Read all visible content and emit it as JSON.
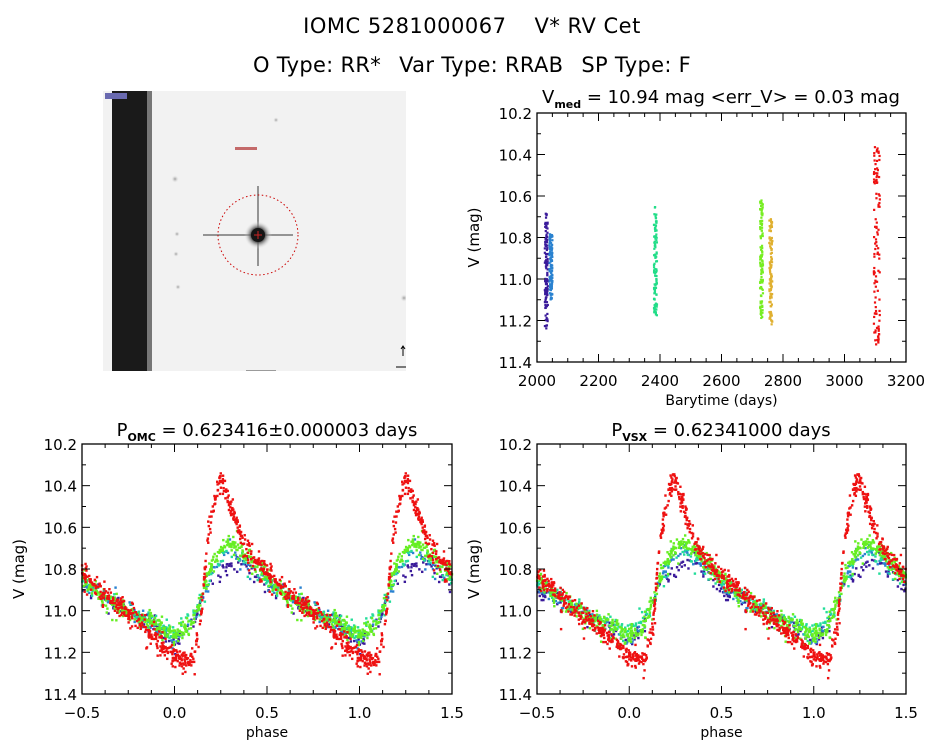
{
  "header": {
    "object_id": "IOMC 5281000067",
    "star_name": "V* RV Cet",
    "o_type": "O Type: RR*",
    "var_type": "Var Type: RRAB",
    "sp_type": "SP Type: F"
  },
  "finder": {
    "description": "grayscale sky image with target star circled in red",
    "circle_color": "#cc0000"
  },
  "chart_data": [
    {
      "id": "lightcurve",
      "type": "scatter",
      "title_main": "V",
      "title_sub": "med",
      "title_rest": " = 10.94 mag <err_V> = 0.03 mag",
      "xlabel": "Barytime (days)",
      "ylabel": "V (mag)",
      "xlim": [
        2000,
        3200
      ],
      "ylim": [
        11.4,
        10.2
      ],
      "y_inverted": true,
      "xticks": [
        2000,
        2200,
        2400,
        2600,
        2800,
        3000,
        3200
      ],
      "xtick_labels": [
        "2000",
        "2200",
        "2400",
        "2600",
        "2800",
        "3000",
        "3200"
      ],
      "yticks": [
        10.2,
        10.4,
        10.6,
        10.8,
        11.0,
        11.2,
        11.4
      ],
      "ytick_labels": [
        "10.2",
        "10.4",
        "10.6",
        "10.8",
        "11.0",
        "11.2",
        "11.4"
      ],
      "series": [
        {
          "name": "season-1a",
          "color": "#3a1a9a",
          "x": 2030,
          "ymin": 10.68,
          "ymax": 11.24
        },
        {
          "name": "season-1b",
          "color": "#2a82d0",
          "x": 2045,
          "ymin": 10.78,
          "ymax": 11.1
        },
        {
          "name": "season-2",
          "color": "#22dd88",
          "x": 2385,
          "ymin": 10.65,
          "ymax": 11.18
        },
        {
          "name": "season-3a",
          "color": "#77ee22",
          "x": 2730,
          "ymin": 10.62,
          "ymax": 11.2
        },
        {
          "name": "season-3b",
          "color": "#e0b030",
          "x": 2760,
          "ymin": 10.71,
          "ymax": 11.22
        },
        {
          "name": "season-4",
          "color": "#ee1111",
          "x": 3105,
          "ymin": 10.35,
          "ymax": 11.33
        }
      ]
    },
    {
      "id": "phase-omc",
      "type": "scatter",
      "title_main": "P",
      "title_sub": "OMC",
      "title_rest": " = 0.623416±0.000003 days",
      "xlabel": "phase",
      "ylabel": "V (mag)",
      "xlim": [
        -0.5,
        1.5
      ],
      "ylim": [
        11.4,
        10.2
      ],
      "y_inverted": true,
      "xticks": [
        -0.5,
        0.0,
        0.5,
        1.0,
        1.5
      ],
      "xtick_labels": [
        "−0.5",
        "0.0",
        "0.5",
        "1.0",
        "1.5"
      ],
      "yticks": [
        10.2,
        10.4,
        10.6,
        10.8,
        11.0,
        11.2,
        11.4
      ],
      "ytick_labels": [
        "10.2",
        "10.4",
        "10.6",
        "10.8",
        "11.0",
        "11.2",
        "11.4"
      ],
      "phase_shift": 0.0,
      "curves": [
        {
          "name": "red-epoch",
          "color": "#ee1111",
          "phase": [
            0.0,
            0.1,
            0.14,
            0.18,
            0.22,
            0.25,
            0.3,
            0.35,
            0.4,
            0.5,
            0.6,
            0.7,
            0.8,
            0.9,
            1.0
          ],
          "mag": [
            11.22,
            11.24,
            11.05,
            10.65,
            10.45,
            10.36,
            10.48,
            10.62,
            10.72,
            10.82,
            10.9,
            10.98,
            11.05,
            11.13,
            11.22
          ]
        },
        {
          "name": "green-epoch",
          "color": "#66ee22",
          "phase": [
            0.0,
            0.08,
            0.14,
            0.2,
            0.25,
            0.3,
            0.35,
            0.4,
            0.5,
            0.6,
            0.7,
            0.8,
            0.9,
            1.0
          ],
          "mag": [
            11.12,
            11.08,
            10.95,
            10.78,
            10.7,
            10.67,
            10.7,
            10.74,
            10.83,
            10.92,
            10.98,
            11.03,
            11.06,
            11.12
          ]
        },
        {
          "name": "blue-epoch",
          "color": "#2a82d0",
          "phase": [
            0.0,
            0.1,
            0.2,
            0.3,
            0.4,
            0.5,
            0.7,
            0.9,
            1.0
          ],
          "mag": [
            11.15,
            11.05,
            10.8,
            10.7,
            10.78,
            10.87,
            10.98,
            11.08,
            11.15
          ]
        },
        {
          "name": "teal-epoch",
          "color": "#22dd99",
          "phase": [
            0.0,
            0.12,
            0.2,
            0.3,
            0.45,
            0.6,
            0.8,
            1.0
          ],
          "mag": [
            11.1,
            11.0,
            10.82,
            10.7,
            10.82,
            10.92,
            11.02,
            11.1
          ]
        },
        {
          "name": "purple-epoch",
          "color": "#3a1a9a",
          "phase": [
            0.0,
            0.1,
            0.2,
            0.35,
            0.5,
            0.7,
            0.9,
            1.0
          ],
          "mag": [
            11.16,
            11.05,
            10.85,
            10.74,
            10.9,
            10.97,
            11.07,
            11.16
          ]
        }
      ]
    },
    {
      "id": "phase-vsx",
      "type": "scatter",
      "title_main": "P",
      "title_sub": "VSX",
      "title_rest": " = 0.62341000 days",
      "xlabel": "phase",
      "ylabel": "V (mag)",
      "xlim": [
        -0.5,
        1.5
      ],
      "ylim": [
        11.4,
        10.2
      ],
      "y_inverted": true,
      "xticks": [
        -0.5,
        0.0,
        0.5,
        1.0,
        1.5
      ],
      "xtick_labels": [
        "−0.5",
        "0.0",
        "0.5",
        "1.0",
        "1.5"
      ],
      "yticks": [
        10.2,
        10.4,
        10.6,
        10.8,
        11.0,
        11.2,
        11.4
      ],
      "ytick_labels": [
        "10.2",
        "10.4",
        "10.6",
        "10.8",
        "11.0",
        "11.2",
        "11.4"
      ],
      "phase_shift": -0.01,
      "curves_ref": "phase-omc"
    }
  ]
}
